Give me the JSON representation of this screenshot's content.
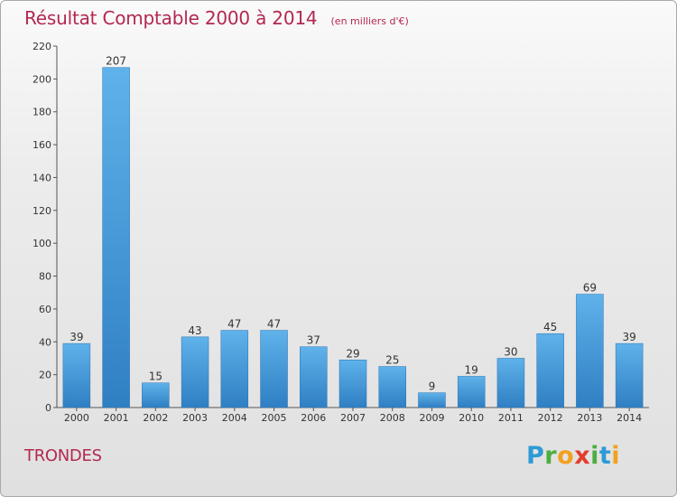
{
  "title": "Résultat Comptable 2000 à 2014",
  "subtitle": "(en milliers d'€)",
  "commune": "TRONDES",
  "logo_text": "Proxiti",
  "colors": {
    "title": "#b3284f",
    "bar_light": "#5fb2ea",
    "bar_dark": "#2f7fc3",
    "axis": "#555555"
  },
  "chart_data": {
    "type": "bar",
    "title": "Résultat Comptable 2000 à 2014",
    "subtitle": "(en milliers d'€)",
    "categories": [
      "2000",
      "2001",
      "2002",
      "2003",
      "2004",
      "2005",
      "2006",
      "2007",
      "2008",
      "2009",
      "2010",
      "2011",
      "2012",
      "2013",
      "2014"
    ],
    "values": [
      39,
      207,
      15,
      43,
      47,
      47,
      37,
      29,
      25,
      9,
      19,
      30,
      45,
      69,
      39
    ],
    "value_labels": [
      "39",
      "207",
      "15",
      "43",
      "47",
      "47",
      "37",
      "29",
      "25",
      "9",
      "19",
      "30",
      "45",
      "69",
      "39"
    ],
    "ylim": [
      0,
      220
    ],
    "yticks": [
      "0",
      "20",
      "40",
      "60",
      "80",
      "100",
      "120",
      "140",
      "160",
      "180",
      "200",
      "220"
    ],
    "xlabel": "",
    "ylabel": "",
    "grid": false,
    "legend": "none"
  }
}
